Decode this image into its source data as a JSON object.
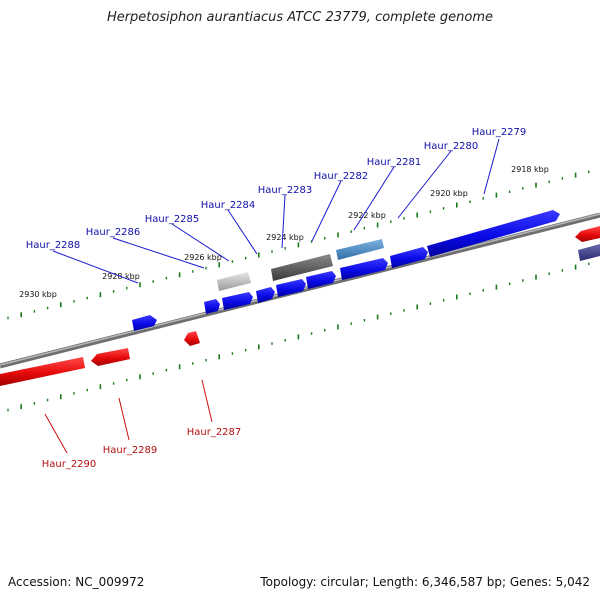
{
  "title": "Herpetosiphon aurantiacus ATCC 23779, complete genome",
  "footer": {
    "accession": "Accession: NC_009972",
    "summary": "Topology: circular; Length: 6,346,587 bp; Genes: 5,042"
  },
  "colors": {
    "forward_gene": "#0a0ae6",
    "reverse_gene": "#e60a0a",
    "backbone": "#8a8a8a",
    "tick": "#1a7a1a",
    "forward_label": "#1010a8",
    "reverse_label": "#b01010"
  },
  "kbp_labels": [
    "2918 kbp",
    "2920 kbp",
    "2922 kbp",
    "2924 kbp",
    "2926 kbp",
    "2928 kbp",
    "2930 kbp"
  ],
  "gene_labels_top": [
    "Haur_2279",
    "Haur_2280",
    "Haur_2281",
    "Haur_2282",
    "Haur_2283",
    "Haur_2284",
    "Haur_2285",
    "Haur_2286",
    "Haur_2288"
  ],
  "gene_labels_bottom": [
    "Haur_2287",
    "Haur_2289",
    "Haur_2290"
  ]
}
